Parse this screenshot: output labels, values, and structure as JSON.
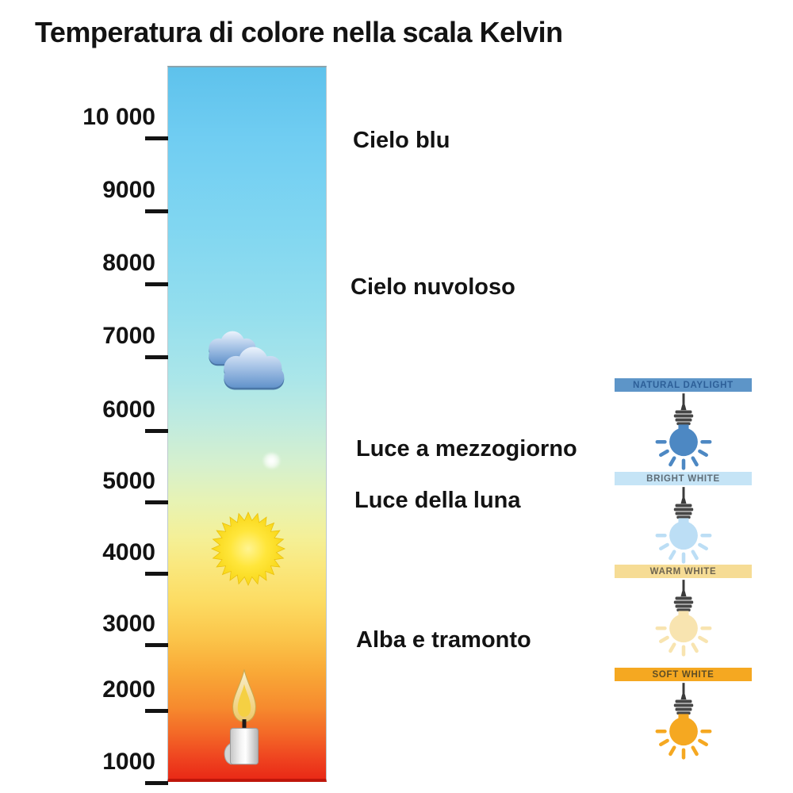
{
  "title": "Temperatura di colore nella scala Kelvin",
  "scale": {
    "unit_labels": [
      "10 000",
      "9000",
      "8000",
      "7000",
      "6000",
      "5000",
      "4000",
      "3000",
      "2000",
      "1000"
    ]
  },
  "zones": [
    "Cielo blu",
    "Cielo nuvoloso",
    "Luce a mezzogiorno",
    "Luce della luna",
    "Alba e tramonto"
  ],
  "icons": [
    "clouds-icon",
    "moon-icon",
    "sun-icon",
    "candle-icon",
    "lightbulb-icon"
  ],
  "gradient": {
    "stops": [
      "#5ec2ec 0%",
      "#70cdf2 10%",
      "#80d6f1 22%",
      "#93deee 34%",
      "#abe6e9 44%",
      "#c0ebdf 50%",
      "#d6f0cd 56%",
      "#e7f3b4 61%",
      "#f4f098 66%",
      "#fae87e 70%",
      "#fcdc63 75%",
      "#fbc64b 80%",
      "#f9a937 85%",
      "#f68a2e 90%",
      "#f36526 94%",
      "#ef4520 97%",
      "#e92a16 100%"
    ]
  },
  "bulbs": [
    {
      "label": "NATURAL DAYLIGHT",
      "header_bg": "#5d95c8",
      "header_text_color": "#2d5f98",
      "bulb_color": "#4d88c3"
    },
    {
      "label": "BRIGHT WHITE",
      "header_bg": "#c5e4f6",
      "header_text_color": "#5f6d77",
      "bulb_color": "#bcdef5"
    },
    {
      "label": "WARM WHITE",
      "header_bg": "#f6dc95",
      "header_text_color": "#6e6551",
      "bulb_color": "#f8e4b0"
    },
    {
      "label": "SOFT WHITE",
      "header_bg": "#f5a821",
      "header_text_color": "#5d4d25",
      "bulb_color": "#f5a821"
    }
  ]
}
